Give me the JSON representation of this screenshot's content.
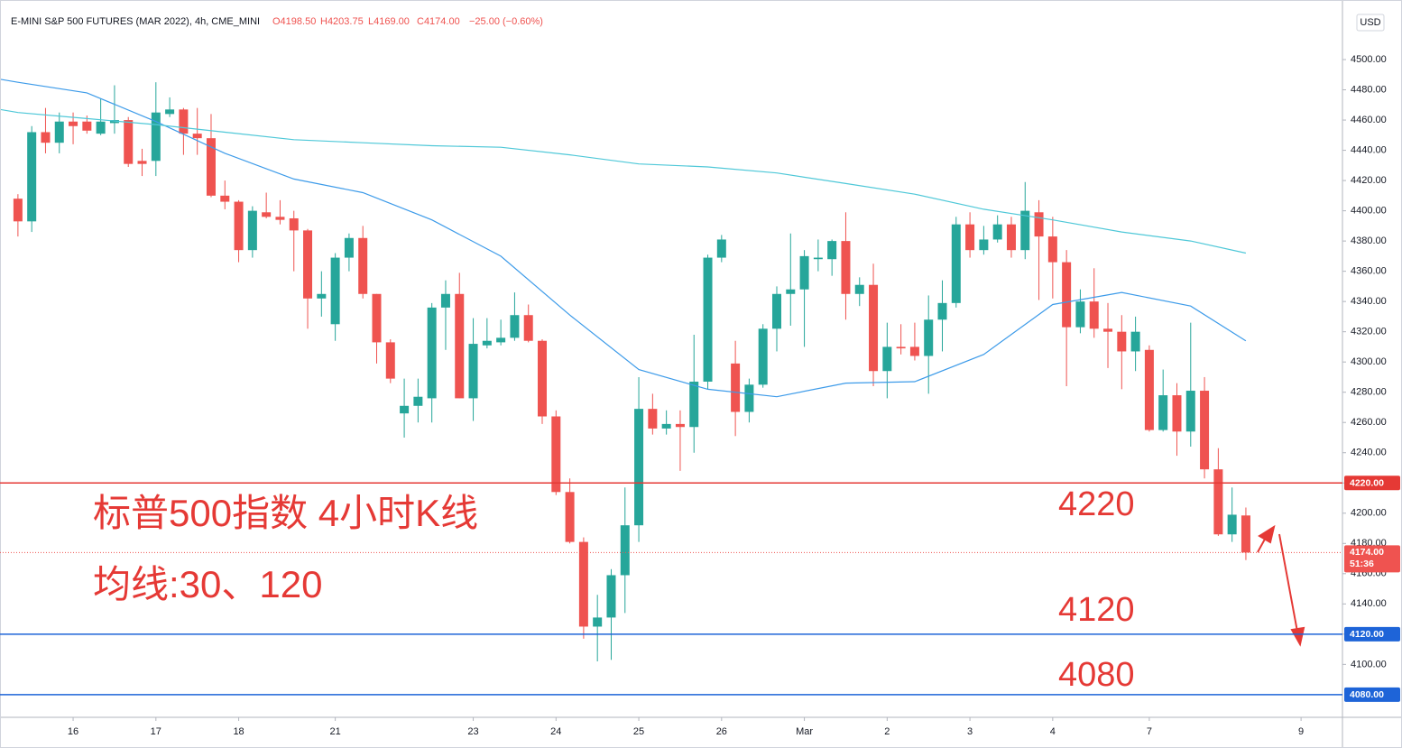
{
  "chart_data": {
    "type": "candlestick",
    "symbol": "E-MINI S&P 500 FUTURES (MAR 2022), 4h, CME_MINI",
    "ohlc_header": [
      "O4198.50",
      "H4203.75",
      "L4169.00",
      "C4174.00"
    ],
    "change": "−25.00 (−0.60%)",
    "currency": "USD",
    "up_color": "#26a69a",
    "down_color": "#ef5350",
    "series": {
      "open": [
        4408,
        4393,
        4452,
        4445,
        4459,
        4459,
        4451,
        4458,
        4460,
        4433,
        4433,
        4464,
        4467,
        4451,
        4448,
        4410,
        4406,
        4374,
        4399,
        4396,
        4395,
        4387,
        4342,
        4325,
        4369,
        4382,
        4345,
        4313,
        4266,
        4271,
        4276,
        4336,
        4345,
        4276,
        4311,
        4313,
        4316,
        4331,
        4314,
        4264,
        4214,
        4181,
        4125,
        4131,
        4159,
        4192,
        4269,
        4256,
        4259,
        4257,
        4287,
        4369,
        4299,
        4267,
        4285,
        4322,
        4345,
        4348,
        4368,
        4368,
        4380,
        4345,
        4351,
        4294,
        4310,
        4310,
        4304,
        4328,
        4339,
        4391,
        4374,
        4381,
        4391,
        4374,
        4399,
        4383,
        4366,
        4323,
        4340,
        4322,
        4320,
        4307,
        4308,
        4255,
        4278,
        4254,
        4281,
        4229,
        4186,
        4198.5
      ],
      "high": [
        4411,
        4456,
        4468,
        4465,
        4465,
        4463,
        4474,
        4483,
        4462,
        4441,
        4485,
        4475,
        4468,
        4468,
        4464,
        4420,
        4407,
        4403,
        4412,
        4407,
        4400,
        4388,
        4360,
        4372,
        4385,
        4390,
        4345,
        4315,
        4289,
        4289,
        4339,
        4354,
        4359,
        4329,
        4329,
        4328,
        4346,
        4338,
        4315,
        4268,
        4223,
        4184,
        4146,
        4163,
        4217,
        4290,
        4279,
        4268,
        4268,
        4318,
        4371,
        4384,
        4314,
        4289,
        4325,
        4350,
        4385,
        4374,
        4381,
        4381,
        4399,
        4356,
        4365,
        4326,
        4325,
        4326,
        4344,
        4354,
        4396,
        4399,
        4390,
        4397,
        4396,
        4419,
        4407,
        4396,
        4374,
        4348,
        4362,
        4339,
        4331,
        4330,
        4311,
        4295,
        4286,
        4326,
        4290,
        4243,
        4217,
        4203.75
      ],
      "low": [
        4383,
        4386,
        4438,
        4438,
        4444,
        4451,
        4450,
        4451,
        4429,
        4423,
        4423,
        4462,
        4437,
        4437,
        4409,
        4401,
        4366,
        4369,
        4395,
        4391,
        4360,
        4322,
        4330,
        4314,
        4360,
        4342,
        4299,
        4286,
        4250,
        4260,
        4260,
        4308,
        4276,
        4261,
        4309,
        4311,
        4314,
        4313,
        4259,
        4212,
        4180,
        4117,
        4102,
        4103,
        4134,
        4181,
        4252,
        4252,
        4228,
        4240,
        4282,
        4366,
        4251,
        4260,
        4283,
        4307,
        4324,
        4310,
        4360,
        4357,
        4328,
        4337,
        4284,
        4276,
        4305,
        4301,
        4279,
        4307,
        4336,
        4369,
        4371,
        4379,
        4369,
        4368,
        4341,
        4342,
        4284,
        4319,
        4316,
        4296,
        4282,
        4294,
        4254,
        4254,
        4238,
        4244,
        4223,
        4185,
        4181,
        4169
      ],
      "close": [
        4393,
        4452,
        4445,
        4459,
        4456,
        4453,
        4459,
        4460,
        4431,
        4431,
        4465,
        4467,
        4451,
        4448,
        4410,
        4406,
        4374,
        4400,
        4396,
        4394,
        4387,
        4342,
        4345,
        4369,
        4382,
        4345,
        4313,
        4289,
        4271,
        4277,
        4336,
        4345,
        4276,
        4312,
        4314,
        4316,
        4331,
        4314,
        4264,
        4214,
        4181,
        4125,
        4131,
        4159,
        4192,
        4269,
        4256,
        4259,
        4257,
        4287,
        4369,
        4381,
        4267,
        4285,
        4322,
        4345,
        4348,
        4370,
        4369,
        4380,
        4345,
        4351,
        4294,
        4310,
        4309,
        4304,
        4328,
        4339,
        4391,
        4374,
        4381,
        4391,
        4374,
        4400,
        4383,
        4366,
        4323,
        4340,
        4322,
        4320,
        4307,
        4320,
        4255,
        4278,
        4254,
        4281,
        4229,
        4186,
        4199,
        4174
      ]
    },
    "moving_averages": [
      {
        "color": "#3d9be9",
        "x": [
          -1.3,
          0,
          5,
          10,
          15,
          20,
          25,
          30,
          35,
          40,
          45,
          50,
          55,
          60,
          65,
          70,
          75,
          80,
          85,
          89
        ],
        "values": [
          4487,
          4485,
          4478,
          4459,
          4438,
          4421,
          4412,
          4394,
          4370,
          4331,
          4295,
          4282,
          4277,
          4286,
          4287,
          4305,
          4338,
          4346,
          4337,
          4314
        ]
      },
      {
        "color": "#4fc8d8",
        "x": [
          -1.3,
          0,
          5,
          10,
          15,
          20,
          25,
          30,
          35,
          40,
          45,
          50,
          55,
          60,
          65,
          70,
          75,
          80,
          85,
          89
        ],
        "values": [
          4467,
          4465,
          4461,
          4457,
          4452,
          4447,
          4445,
          4443,
          4442,
          4437,
          4431,
          4429,
          4425,
          4418,
          4411,
          4401,
          4394,
          4386,
          4380,
          4372
        ]
      }
    ],
    "levels": [
      {
        "value": 4220,
        "label": "4220.00",
        "color": "#e53935"
      },
      {
        "value": 4120,
        "label": "4120.00",
        "color": "#1e64d8"
      },
      {
        "value": 4080,
        "label": "4080.00",
        "color": "#1e64d8"
      }
    ],
    "last_price": {
      "value": 4174,
      "label": "4174.00",
      "countdown": "51:36",
      "color": "#ef5350"
    },
    "annotations": [
      "标普500指数 4小时K线",
      "均线:30、120",
      "4220",
      "4120",
      "4080"
    ],
    "xlim": [
      -1.3,
      96
    ],
    "ylim": [
      4065,
      4539.4
    ],
    "xticks": [
      {
        "value": 4,
        "label": "16"
      },
      {
        "value": 10,
        "label": "17"
      },
      {
        "value": 16,
        "label": "18"
      },
      {
        "value": 23,
        "label": "21"
      },
      {
        "value": 33,
        "label": "23"
      },
      {
        "value": 39,
        "label": "24"
      },
      {
        "value": 45,
        "label": "25"
      },
      {
        "value": 51,
        "label": "26"
      },
      {
        "value": 57,
        "label": "Mar"
      },
      {
        "value": 63,
        "label": "2"
      },
      {
        "value": 69,
        "label": "3"
      },
      {
        "value": 75,
        "label": "4"
      },
      {
        "value": 82,
        "label": "7"
      },
      {
        "value": 93,
        "label": "9"
      }
    ],
    "yticks": [
      {
        "value": 4100,
        "label": "4100.00"
      },
      {
        "value": 4120,
        "label": "4120.00"
      },
      {
        "value": 4140,
        "label": "4140.00"
      },
      {
        "value": 4160,
        "label": "4160.00"
      },
      {
        "value": 4180,
        "label": "4180.00"
      },
      {
        "value": 4200,
        "label": "4200.00"
      },
      {
        "value": 4220,
        "label": "4220.00"
      },
      {
        "value": 4240,
        "label": "4240.00"
      },
      {
        "value": 4260,
        "label": "4260.00"
      },
      {
        "value": 4280,
        "label": "4280.00"
      },
      {
        "value": 4300,
        "label": "4300.00"
      },
      {
        "value": 4320,
        "label": "4320.00"
      },
      {
        "value": 4340,
        "label": "4340.00"
      },
      {
        "value": 4360,
        "label": "4360.00"
      },
      {
        "value": 4380,
        "label": "4380.00"
      },
      {
        "value": 4400,
        "label": "4400.00"
      },
      {
        "value": 4420,
        "label": "4420.00"
      },
      {
        "value": 4440,
        "label": "4440.00"
      },
      {
        "value": 4460,
        "label": "4460.00"
      },
      {
        "value": 4480,
        "label": "4480.00"
      },
      {
        "value": 4500,
        "label": "4500.00"
      }
    ],
    "grid": false
  }
}
